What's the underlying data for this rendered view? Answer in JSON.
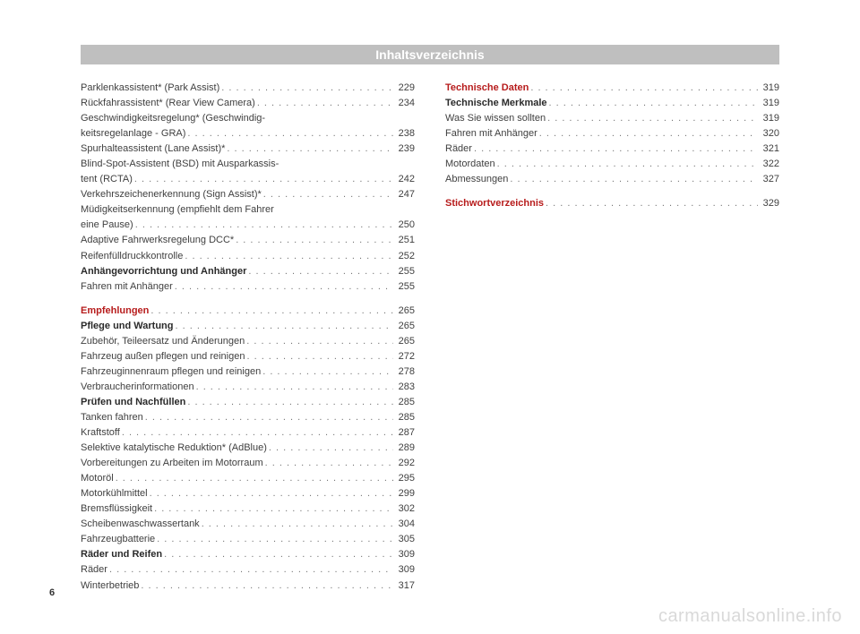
{
  "header": "Inhaltsverzeichnis",
  "page_number": "6",
  "watermark": "carmanualsonline.info",
  "dots_filler": " . . . . . . . . . . . . . . . . . . . . . . . . . . . . . . . . . . . . . . . .",
  "col1": [
    {
      "t": "single",
      "label": "Parklenkassistent* (Park Assist)",
      "page": "229"
    },
    {
      "t": "single",
      "label": "Rückfahrassistent* (Rear View Camera)",
      "page": "234"
    },
    {
      "t": "multi",
      "line1": "Geschwindigkeitsregelung* (Geschwindig-",
      "line2": "keitsregelanlage - GRA)",
      "page": "238"
    },
    {
      "t": "single",
      "label": "Spurhalteassistent (Lane Assist)*",
      "page": "239"
    },
    {
      "t": "multi",
      "line1": "Blind-Spot-Assistent (BSD) mit Ausparkassis-",
      "line2": "tent (RCTA)",
      "page": "242"
    },
    {
      "t": "single",
      "label": "Verkehrszeichenerkennung (Sign Assist)*",
      "page": "247"
    },
    {
      "t": "multi",
      "line1": "Müdigkeitserkennung (empfiehlt dem Fahrer",
      "line2": "eine Pause)",
      "page": "250"
    },
    {
      "t": "single",
      "label": "Adaptive Fahrwerksregelung DCC*",
      "page": "251"
    },
    {
      "t": "single",
      "label": "Reifenfülldruckkontrolle",
      "page": "252"
    },
    {
      "t": "single",
      "style": "bold",
      "label": "Anhängevorrichtung und Anhänger",
      "page": "255"
    },
    {
      "t": "single",
      "label": "Fahren mit Anhänger",
      "page": "255"
    },
    {
      "t": "single",
      "style": "section",
      "label": "Empfehlungen",
      "page": "265"
    },
    {
      "t": "single",
      "style": "bold",
      "label": "Pflege und Wartung",
      "page": "265"
    },
    {
      "t": "single",
      "label": "Zubehör, Teileersatz und Änderungen",
      "page": "265"
    },
    {
      "t": "single",
      "label": "Fahrzeug außen pflegen und reinigen",
      "page": "272"
    },
    {
      "t": "single",
      "label": "Fahrzeuginnenraum pflegen und reinigen",
      "page": "278"
    },
    {
      "t": "single",
      "label": "Verbraucherinformationen",
      "page": "283"
    },
    {
      "t": "single",
      "style": "bold",
      "label": "Prüfen und Nachfüllen",
      "page": "285"
    },
    {
      "t": "single",
      "label": "Tanken fahren",
      "page": "285"
    },
    {
      "t": "single",
      "label": "Kraftstoff",
      "page": "287"
    },
    {
      "t": "single",
      "label": "Selektive katalytische Reduktion* (AdBlue)",
      "page": "289"
    },
    {
      "t": "single",
      "label": "Vorbereitungen zu Arbeiten im Motorraum",
      "page": "292"
    },
    {
      "t": "single",
      "label": "Motoröl",
      "page": "295"
    },
    {
      "t": "single",
      "label": "Motorkühlmittel",
      "page": "299"
    },
    {
      "t": "single",
      "label": "Bremsflüssigkeit",
      "page": "302"
    },
    {
      "t": "single",
      "label": "Scheibenwaschwassertank",
      "page": "304"
    },
    {
      "t": "single",
      "label": "Fahrzeugbatterie",
      "page": "305"
    },
    {
      "t": "single",
      "style": "bold",
      "label": "Räder und Reifen",
      "page": "309"
    },
    {
      "t": "single",
      "label": "Räder",
      "page": "309"
    },
    {
      "t": "single",
      "label": "Winterbetrieb",
      "page": "317"
    }
  ],
  "col2": [
    {
      "t": "single",
      "style": "section-first",
      "label": "Technische Daten",
      "page": "319"
    },
    {
      "t": "single",
      "style": "bold",
      "label": "Technische Merkmale",
      "page": "319"
    },
    {
      "t": "single",
      "label": "Was Sie wissen sollten",
      "page": "319"
    },
    {
      "t": "single",
      "label": "Fahren mit Anhänger",
      "page": "320"
    },
    {
      "t": "single",
      "label": "Räder",
      "page": "321"
    },
    {
      "t": "single",
      "label": "Motordaten",
      "page": "322"
    },
    {
      "t": "single",
      "label": "Abmessungen",
      "page": "327"
    },
    {
      "t": "single",
      "style": "section",
      "label": "Stichwortverzeichnis",
      "page": "329"
    }
  ]
}
